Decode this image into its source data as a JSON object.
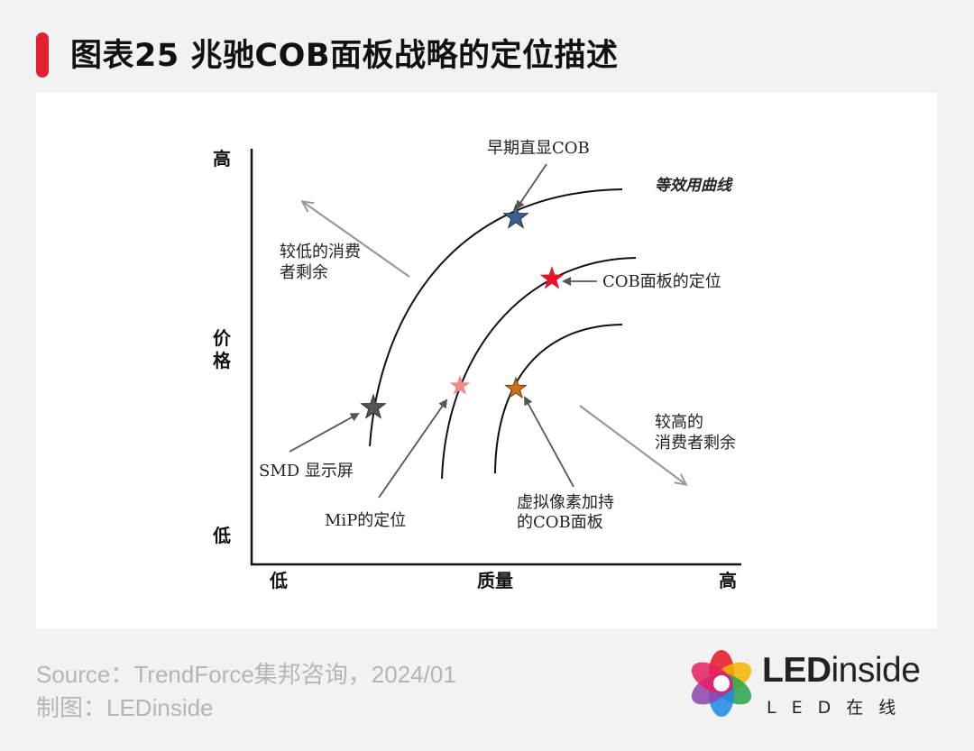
{
  "header": {
    "title": "图表25 兆驰COB面板战略的定位描述",
    "accent_color": "#e5202e"
  },
  "diagram": {
    "y_axis": {
      "title_line1": "价",
      "title_line2": "格",
      "high": "高",
      "low": "低"
    },
    "x_axis": {
      "title": "质量",
      "low": "低",
      "high": "高"
    },
    "curve_label": "等效用曲线",
    "labels": {
      "early_cob": "早期直显COB",
      "cob_panel": "COB面板的定位",
      "lower_surplus_1": "较低的消费",
      "lower_surplus_2": "者剩余",
      "higher_surplus_1": "较高的",
      "higher_surplus_2": "消费者剩余",
      "smd": "SMD 显示屏",
      "mip": "MiP的定位",
      "virtual_pixel_1": "虚拟像素加持",
      "virtual_pixel_2": "的COB面板"
    },
    "star_colors": {
      "early_cob": "#3b5f92",
      "cob_panel": "#e3142b",
      "smd": "#555555",
      "mip": "#f08a8a",
      "virtual_pixel": "#c8711e"
    }
  },
  "footer": {
    "source": "Source：TrendForce集邦咨询，2024/01",
    "made_by": "制图：LEDinside"
  },
  "logo": {
    "name_bold": "LED",
    "name_rest": "inside",
    "tagline": "LED在线"
  }
}
